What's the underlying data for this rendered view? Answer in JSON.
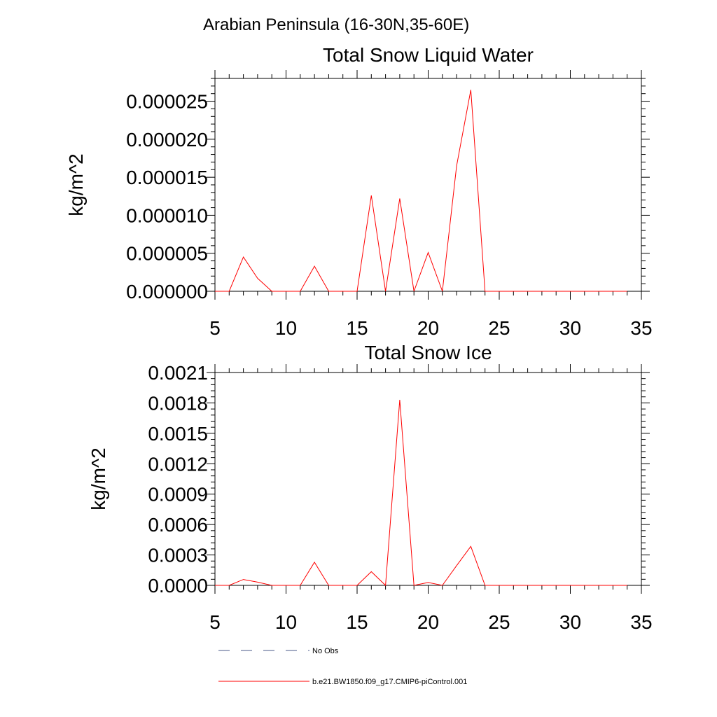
{
  "figure": {
    "region_title": "Arabian Peninsula (16-30N,35-60E)"
  },
  "chart_data": [
    {
      "type": "line",
      "title": "Total Snow Liquid Water",
      "xlabel": "",
      "ylabel": "kg/m^2",
      "xlim": [
        5,
        35
      ],
      "ylim": [
        0,
        2.8e-05
      ],
      "x_ticks": [
        "5",
        "10",
        "15",
        "20",
        "25",
        "30",
        "35"
      ],
      "y_ticks": [
        "0.000000",
        "0.000005",
        "0.000010",
        "0.000015",
        "0.000020",
        "0.000025"
      ],
      "x": [
        5,
        6,
        7,
        8,
        9,
        10,
        11,
        12,
        13,
        14,
        15,
        16,
        17,
        18,
        19,
        20,
        21,
        22,
        23,
        24,
        25,
        26,
        27,
        28,
        29,
        30,
        31,
        32,
        33,
        34
      ],
      "series": [
        {
          "name": "b.e21.BW1850.f09_g17.CMIP6-piControl.001",
          "color": "#ff0000",
          "values": [
            0,
            0,
            4.5e-06,
            1.7e-06,
            0,
            0,
            0,
            3.3e-06,
            0,
            0,
            0,
            1.26e-05,
            0,
            1.22e-05,
            0,
            5.1e-06,
            0,
            1.65e-05,
            2.65e-05,
            0,
            0,
            0,
            0,
            0,
            0,
            0,
            0,
            0,
            0,
            0
          ]
        }
      ],
      "grid": false
    },
    {
      "type": "line",
      "title": "Total Snow Ice",
      "xlabel": "",
      "ylabel": "kg/m^2",
      "xlim": [
        5,
        35
      ],
      "ylim": [
        0,
        0.0021
      ],
      "x_ticks": [
        "5",
        "10",
        "15",
        "20",
        "25",
        "30",
        "35"
      ],
      "y_ticks": [
        "0.0000",
        "0.0003",
        "0.0006",
        "0.0009",
        "0.0012",
        "0.0015",
        "0.0018",
        "0.0021"
      ],
      "x": [
        5,
        6,
        7,
        8,
        9,
        10,
        11,
        12,
        13,
        14,
        15,
        16,
        17,
        18,
        19,
        20,
        21,
        22,
        23,
        24,
        25,
        26,
        27,
        28,
        29,
        30,
        31,
        32,
        33,
        34
      ],
      "series": [
        {
          "name": "b.e21.BW1850.f09_g17.CMIP6-piControl.001",
          "color": "#ff0000",
          "values": [
            0,
            0,
            5.8e-05,
            3.2e-05,
            0,
            0,
            0,
            0.000228,
            0,
            0,
            0,
            0.000135,
            0,
            0.00183,
            0,
            2.8e-05,
            0,
            0.000195,
            0.000385,
            0,
            0,
            0,
            0,
            0,
            0,
            0,
            0,
            0,
            0,
            0
          ]
        }
      ],
      "grid": false
    }
  ],
  "legend": {
    "placement": "bottom",
    "items": [
      {
        "label": "No Obs",
        "style": "dashed",
        "color": "#4a5a8a"
      },
      {
        "label": "b.e21.BW1850.f09_g17.CMIP6-piControl.001",
        "style": "solid",
        "color": "#ff0000"
      }
    ]
  }
}
